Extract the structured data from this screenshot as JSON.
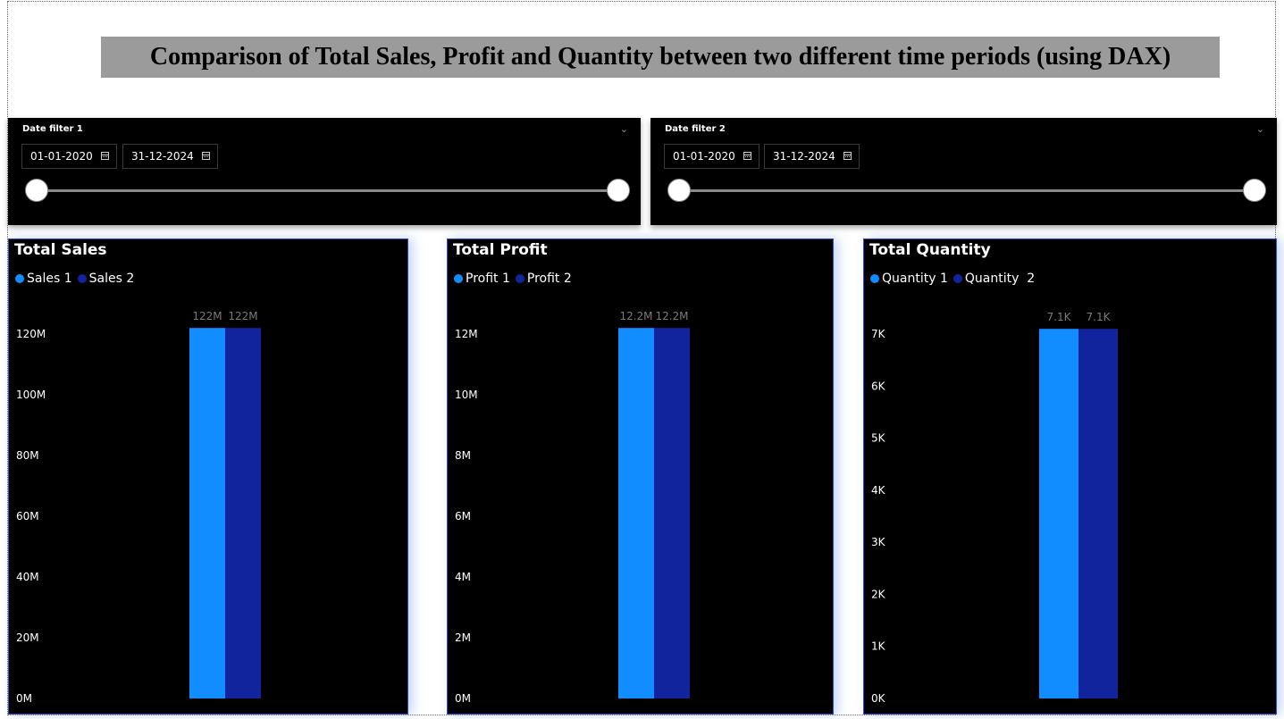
{
  "report": {
    "title": "Comparison of Total Sales, Profit and Quantity between two different time periods (using DAX)"
  },
  "date_filters": [
    {
      "title": "Date filter 1",
      "start": "01-01-2020",
      "end": "31-12-2024",
      "range": [
        0,
        1
      ]
    },
    {
      "title": "Date filter 2",
      "start": "01-01-2020",
      "end": "31-12-2024",
      "range": [
        0,
        1
      ]
    }
  ],
  "colors": {
    "series_1": "#118DFF",
    "series_2": "#12239E",
    "background": "#000000",
    "banner": "#9B9B9B"
  },
  "chart_data": [
    {
      "type": "bar",
      "title": "Total Sales",
      "categories": [
        ""
      ],
      "series": [
        {
          "name": "Sales 1",
          "values": [
            122000000
          ],
          "label": "122M"
        },
        {
          "name": "Sales 2",
          "values": [
            122000000
          ],
          "label": "122M"
        }
      ],
      "ylim": [
        0,
        120000000
      ],
      "yticks": [
        0,
        20000000,
        40000000,
        60000000,
        80000000,
        100000000,
        120000000
      ],
      "ytick_labels": [
        "0M",
        "20M",
        "40M",
        "60M",
        "80M",
        "100M",
        "120M"
      ],
      "legend": "top-left",
      "grid": false
    },
    {
      "type": "bar",
      "title": "Total Profit",
      "categories": [
        ""
      ],
      "series": [
        {
          "name": "Profit 1",
          "values": [
            12200000
          ],
          "label": "12.2M"
        },
        {
          "name": "Profit 2",
          "values": [
            12200000
          ],
          "label": "12.2M"
        }
      ],
      "ylim": [
        0,
        12000000
      ],
      "yticks": [
        0,
        2000000,
        4000000,
        6000000,
        8000000,
        10000000,
        12000000
      ],
      "ytick_labels": [
        "0M",
        "2M",
        "4M",
        "6M",
        "8M",
        "10M",
        "12M"
      ],
      "legend": "top-left",
      "grid": false
    },
    {
      "type": "bar",
      "title": "Total Quantity",
      "categories": [
        ""
      ],
      "series": [
        {
          "name": "Quantity 1",
          "values": [
            7100
          ],
          "label": "7.1K"
        },
        {
          "name": "Quantity  2",
          "values": [
            7100
          ],
          "label": "7.1K"
        }
      ],
      "ylim": [
        0,
        7000
      ],
      "yticks": [
        0,
        1000,
        2000,
        3000,
        4000,
        5000,
        6000,
        7000
      ],
      "ytick_labels": [
        "0K",
        "1K",
        "2K",
        "3K",
        "4K",
        "5K",
        "6K",
        "7K"
      ],
      "legend": "top-left",
      "grid": false
    }
  ]
}
